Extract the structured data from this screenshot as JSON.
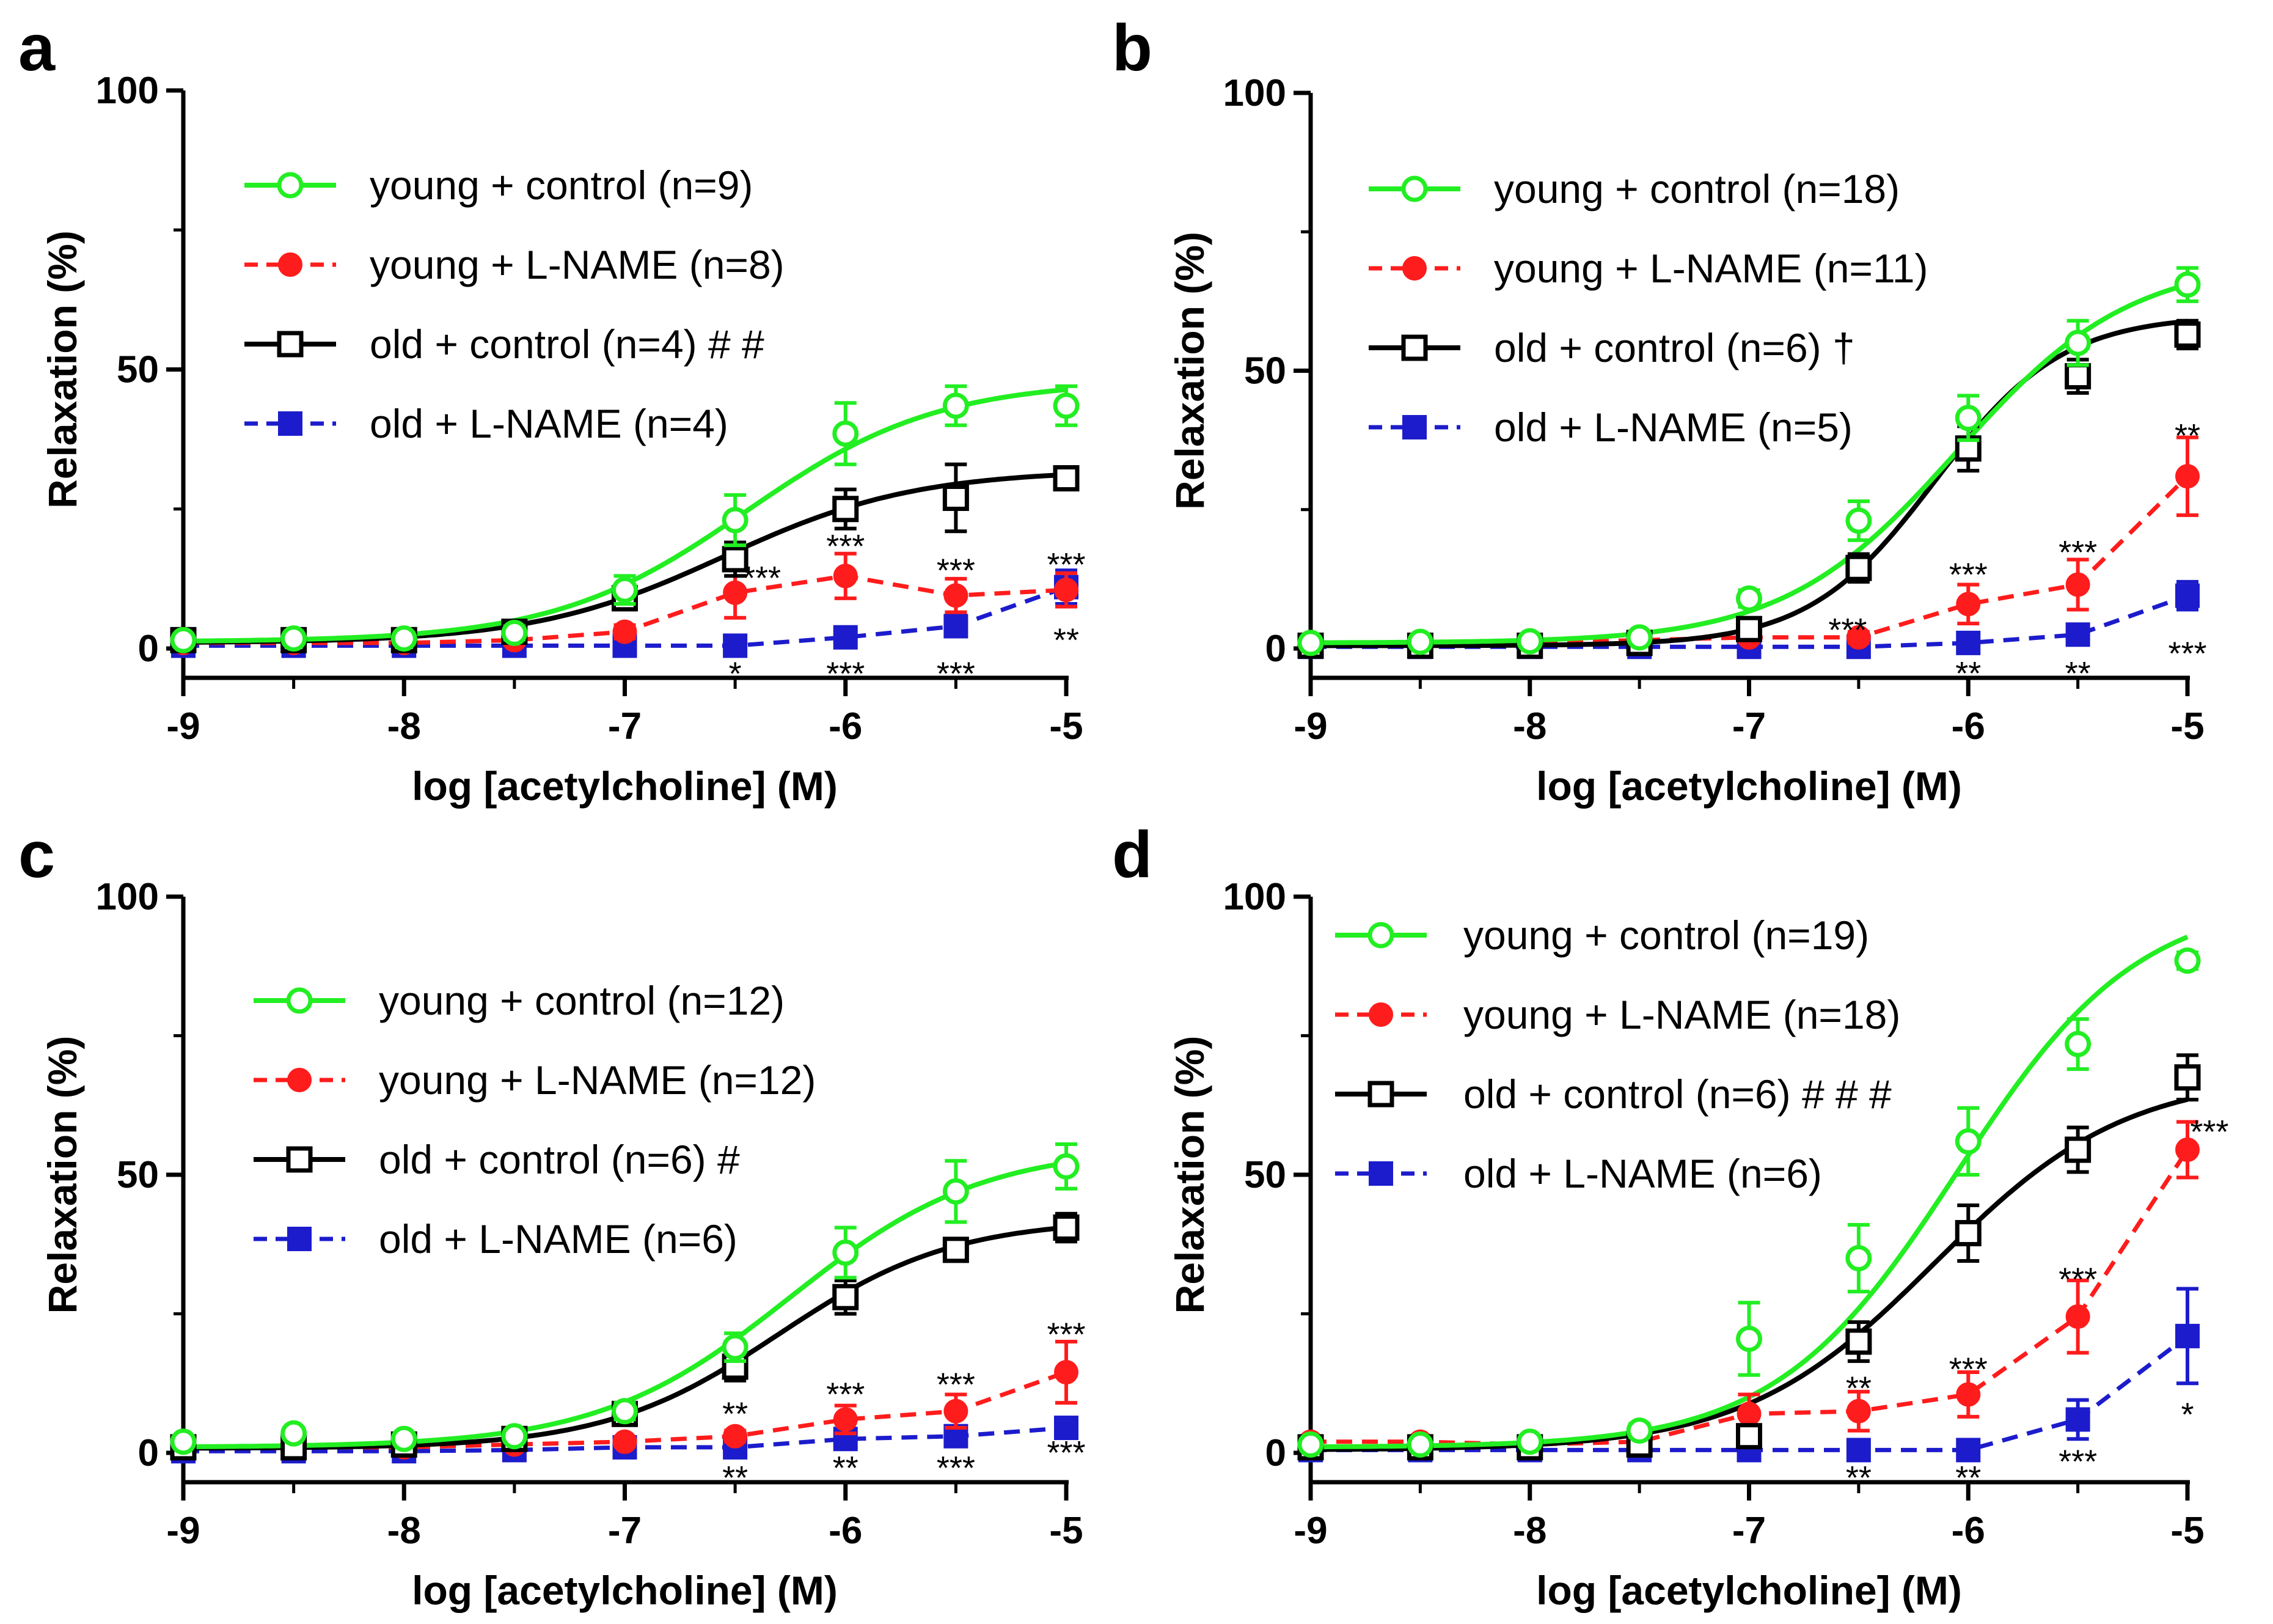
{
  "chart_data": [
    {
      "type": "line",
      "panel": "a",
      "xlabel": "log [acetylcholine] (M)",
      "ylabel": "Relaxation (%)",
      "xlim": [
        -9,
        -5
      ],
      "ylim": [
        0,
        100
      ],
      "xticks": [
        "-9",
        "-8",
        "-7",
        "-6",
        "-5"
      ],
      "yticks": [
        "0",
        "50",
        "100"
      ],
      "x": [
        -9,
        -8.5,
        -8,
        -7.5,
        -7,
        -6.5,
        -6,
        -5.5,
        -5
      ],
      "series": [
        {
          "name": "young + control (n=9)",
          "color": "#22ee22",
          "marker": "open-circle",
          "dashed": false,
          "values": [
            1.5,
            1.8,
            1.8,
            2.8,
            10.5,
            23,
            38.5,
            43.5,
            43.5
          ],
          "errors": [
            0.8,
            0.8,
            0.8,
            1.2,
            2.5,
            4.5,
            5.5,
            3.5,
            3.5
          ],
          "fit": {
            "bottom": 1.2,
            "top": 48,
            "logEC50": -6.45,
            "hill": 1
          }
        },
        {
          "name": "young + L-NAME (n=8)",
          "color": "#ff1c1c",
          "marker": "filled-circle",
          "dashed": true,
          "values": [
            1,
            1,
            1,
            1.5,
            3,
            10,
            13,
            9.5,
            10.5
          ],
          "errors": [
            0.5,
            0.5,
            0.5,
            0.8,
            1.2,
            4.5,
            4,
            3,
            3
          ],
          "connect": true
        },
        {
          "name": "old + control (n=4) # #",
          "color": "#000000",
          "marker": "open-square",
          "dashed": false,
          "values": [
            1.5,
            1.5,
            1.5,
            3,
            9,
            16,
            25,
            27,
            30.5
          ],
          "errors": [
            0.8,
            0.8,
            0.8,
            1.2,
            2,
            3,
            3.5,
            6,
            2
          ],
          "fit": {
            "bottom": 1,
            "top": 32,
            "logEC50": -6.55,
            "hill": 1
          }
        },
        {
          "name": "old + L-NAME (n=4)",
          "color": "#1c1ccc",
          "marker": "filled-square",
          "dashed": true,
          "values": [
            0.5,
            0.5,
            0.5,
            0.5,
            0.5,
            0.5,
            2,
            4,
            11
          ],
          "errors": [
            0.3,
            0.3,
            0.3,
            0.3,
            0.3,
            0.3,
            0.8,
            1.2,
            3
          ],
          "connect": true
        }
      ],
      "annotations": [
        {
          "x": -6.38,
          "y": 12.8,
          "text": "***"
        },
        {
          "x": -6,
          "y": 18.5,
          "text": "***"
        },
        {
          "x": -5.5,
          "y": 14.2,
          "text": "***"
        },
        {
          "x": -5,
          "y": 15.2,
          "text": "***"
        },
        {
          "x": -6.5,
          "y": -4.3,
          "text": "*"
        },
        {
          "x": -6,
          "y": -4.3,
          "text": "***"
        },
        {
          "x": -5.5,
          "y": -4.3,
          "text": "***"
        },
        {
          "x": -5,
          "y": 1.7,
          "text": "**"
        }
      ]
    },
    {
      "type": "line",
      "panel": "b",
      "xlabel": "log [acetylcholine] (M)",
      "ylabel": "Relaxation (%)",
      "xlim": [
        -9,
        -5
      ],
      "ylim": [
        0,
        100
      ],
      "xticks": [
        "-9",
        "-8",
        "-7",
        "-6",
        "-5"
      ],
      "yticks": [
        "0",
        "50",
        "100"
      ],
      "x": [
        -9,
        -8.5,
        -8,
        -7.5,
        -7,
        -6.5,
        -6,
        -5.5,
        -5
      ],
      "series": [
        {
          "name": "young + control (n=18)",
          "color": "#22ee22",
          "marker": "open-circle",
          "dashed": false,
          "values": [
            1,
            1.2,
            1.3,
            2,
            9,
            23,
            41.5,
            55,
            65.5
          ],
          "errors": [
            0.5,
            0.5,
            0.5,
            0.8,
            1.5,
            3.5,
            4,
            4,
            3
          ],
          "fit": {
            "bottom": 1,
            "top": 70,
            "logEC50": -6.05,
            "hill": 1.1
          }
        },
        {
          "name": "young + L-NAME (n=11)",
          "color": "#ff1c1c",
          "marker": "filled-circle",
          "dashed": true,
          "values": [
            1,
            1,
            1,
            1.5,
            2,
            2,
            8,
            11.5,
            31
          ],
          "errors": [
            0.5,
            0.5,
            0.5,
            0.6,
            0.8,
            1,
            3.5,
            4.5,
            7
          ],
          "connect": true
        },
        {
          "name": "old + control (n=6) †",
          "color": "#000000",
          "marker": "open-square",
          "dashed": false,
          "values": [
            0.5,
            0.5,
            0.5,
            1,
            3.5,
            14.5,
            36,
            49,
            56.5
          ],
          "errors": [
            0.3,
            0.3,
            0.3,
            0.5,
            1,
            2.5,
            4,
            3,
            2.5
          ],
          "fit": {
            "bottom": 0.5,
            "top": 60,
            "logEC50": -6.15,
            "hill": 1.5
          }
        },
        {
          "name": "old + L-NAME (n=5)",
          "color": "#1c1ccc",
          "marker": "filled-square",
          "dashed": true,
          "values": [
            0.3,
            0.3,
            0.3,
            0.3,
            0.3,
            0.3,
            1,
            2.5,
            9.5
          ],
          "errors": [
            0.2,
            0.2,
            0.2,
            0.2,
            0.2,
            0.2,
            0.5,
            0.8,
            2.5
          ],
          "connect": true
        }
      ],
      "annotations": [
        {
          "x": -6.55,
          "y": 3.5,
          "text": "***"
        },
        {
          "x": -6,
          "y": 13.5,
          "text": "***"
        },
        {
          "x": -5.5,
          "y": 17.5,
          "text": "***"
        },
        {
          "x": -5,
          "y": 38.5,
          "text": "**"
        },
        {
          "x": -6,
          "y": -4.3,
          "text": "**"
        },
        {
          "x": -5.5,
          "y": -4.3,
          "text": "**"
        },
        {
          "x": -5,
          "y": -0.7,
          "text": "***"
        }
      ]
    },
    {
      "type": "line",
      "panel": "c",
      "xlabel": "log [acetylcholine] (M)",
      "ylabel": "Relaxation (%)",
      "xlim": [
        -9,
        -5
      ],
      "ylim": [
        0,
        100
      ],
      "xticks": [
        "-9",
        "-8",
        "-7",
        "-6",
        "-5"
      ],
      "yticks": [
        "0",
        "50",
        "100"
      ],
      "x": [
        -9,
        -8.5,
        -8,
        -7.5,
        -7,
        -6.5,
        -6,
        -5.5,
        -5
      ],
      "series": [
        {
          "name": "young + control (n=12)",
          "color": "#22ee22",
          "marker": "open-circle",
          "dashed": false,
          "values": [
            2,
            3.5,
            2.5,
            3,
            7.5,
            19,
            36,
            47,
            51.5
          ],
          "errors": [
            0.8,
            1,
            0.8,
            1,
            1.5,
            2.5,
            4.5,
            5.5,
            4
          ],
          "fit": {
            "bottom": 1,
            "top": 55,
            "logEC50": -6.25,
            "hill": 1
          }
        },
        {
          "name": "young + L-NAME (n=12)",
          "color": "#ff1c1c",
          "marker": "filled-circle",
          "dashed": true,
          "values": [
            1,
            1,
            1,
            1.5,
            2,
            3,
            6,
            7.5,
            14.5
          ],
          "errors": [
            0.5,
            0.5,
            0.5,
            0.6,
            0.8,
            1,
            2.5,
            3,
            5.5
          ],
          "connect": true
        },
        {
          "name": "old + control (n=6) #",
          "color": "#000000",
          "marker": "open-square",
          "dashed": false,
          "values": [
            1,
            1,
            1.5,
            2.5,
            7,
            15.5,
            28,
            36.5,
            40.5
          ],
          "errors": [
            0.5,
            0.5,
            0.6,
            0.8,
            1.5,
            2.5,
            3,
            2,
            2.5
          ],
          "fit": {
            "bottom": 0.8,
            "top": 42,
            "logEC50": -6.3,
            "hill": 1.1
          }
        },
        {
          "name": "old + L-NAME  (n=6)",
          "color": "#1c1ccc",
          "marker": "filled-square",
          "dashed": true,
          "values": [
            0.3,
            0.3,
            0.3,
            0.5,
            1,
            1,
            2.5,
            3,
            4.5
          ],
          "errors": [
            0.2,
            0.2,
            0.2,
            0.3,
            0.4,
            0.5,
            0.8,
            1,
            1.2
          ],
          "connect": true
        }
      ],
      "annotations": [
        {
          "x": -6.5,
          "y": 7.2,
          "text": "**"
        },
        {
          "x": -6,
          "y": 10.7,
          "text": "***"
        },
        {
          "x": -5.5,
          "y": 12.5,
          "text": "***"
        },
        {
          "x": -5,
          "y": 21.5,
          "text": "***"
        },
        {
          "x": -6.5,
          "y": -4.3,
          "text": "**"
        },
        {
          "x": -6,
          "y": -2.5,
          "text": "**"
        },
        {
          "x": -5.5,
          "y": -2.5,
          "text": "***"
        },
        {
          "x": -5,
          "y": 0.2,
          "text": "***"
        }
      ]
    },
    {
      "type": "line",
      "panel": "d",
      "xlabel": "log [acetylcholine] (M)",
      "ylabel": "Relaxation (%)",
      "xlim": [
        -9,
        -5
      ],
      "ylim": [
        0,
        100
      ],
      "xticks": [
        "-9",
        "-8",
        "-7",
        "-6",
        "-5"
      ],
      "yticks": [
        "0",
        "50",
        "100"
      ],
      "x": [
        -9,
        -8.5,
        -8,
        -7.5,
        -7,
        -6.5,
        -6,
        -5.5,
        -5
      ],
      "series": [
        {
          "name": "young + control (n=19)",
          "color": "#22ee22",
          "marker": "open-circle",
          "dashed": false,
          "values": [
            1.5,
            1.5,
            2,
            4,
            20.5,
            35,
            56,
            73.5,
            88.5
          ],
          "errors": [
            0.6,
            0.6,
            0.8,
            1.2,
            6.5,
            6,
            6,
            4.5,
            1.5
          ],
          "fit": {
            "bottom": 1,
            "top": 100,
            "logEC50": -6.05,
            "hill": 1.05
          }
        },
        {
          "name": "young + L-NAME (n=18)",
          "color": "#ff1c1c",
          "marker": "filled-circle",
          "dashed": true,
          "values": [
            2,
            2,
            1.5,
            2,
            7,
            7.5,
            10.5,
            24.5,
            54.5
          ],
          "errors": [
            0.8,
            0.8,
            0.6,
            0.8,
            3.5,
            3.5,
            4,
            6.5,
            5
          ],
          "connect": true
        },
        {
          "name": "old + control (n=6) # # #",
          "color": "#000000",
          "marker": "open-square",
          "dashed": false,
          "values": [
            1,
            1,
            1,
            1.5,
            3,
            20,
            39.5,
            54.5,
            67.5
          ],
          "errors": [
            0.4,
            0.4,
            0.4,
            0.6,
            2,
            3.5,
            5,
            4,
            4
          ],
          "fit": {
            "bottom": 0.5,
            "top": 68,
            "logEC50": -6.15,
            "hill": 1
          }
        },
        {
          "name": "old + L-NAME (n=6)",
          "color": "#1c1ccc",
          "marker": "filled-square",
          "dashed": true,
          "values": [
            0.5,
            0.5,
            0.5,
            0.5,
            0.5,
            0.5,
            0.5,
            6,
            21
          ],
          "errors": [
            0.2,
            0.2,
            0.2,
            0.2,
            0.2,
            0.2,
            0.3,
            3.5,
            8.5
          ],
          "connect": true
        }
      ],
      "annotations": [
        {
          "x": -6.5,
          "y": 11.8,
          "text": "**"
        },
        {
          "x": -6,
          "y": 15.2,
          "text": "***"
        },
        {
          "x": -5.5,
          "y": 31.4,
          "text": "***"
        },
        {
          "x": -4.9,
          "y": 57.9,
          "text": "***"
        },
        {
          "x": -6.5,
          "y": -4.3,
          "text": "**"
        },
        {
          "x": -6,
          "y": -4.3,
          "text": "**"
        },
        {
          "x": -5.5,
          "y": -1.4,
          "text": "***"
        },
        {
          "x": -5,
          "y": 7.1,
          "text": "*"
        }
      ]
    }
  ]
}
